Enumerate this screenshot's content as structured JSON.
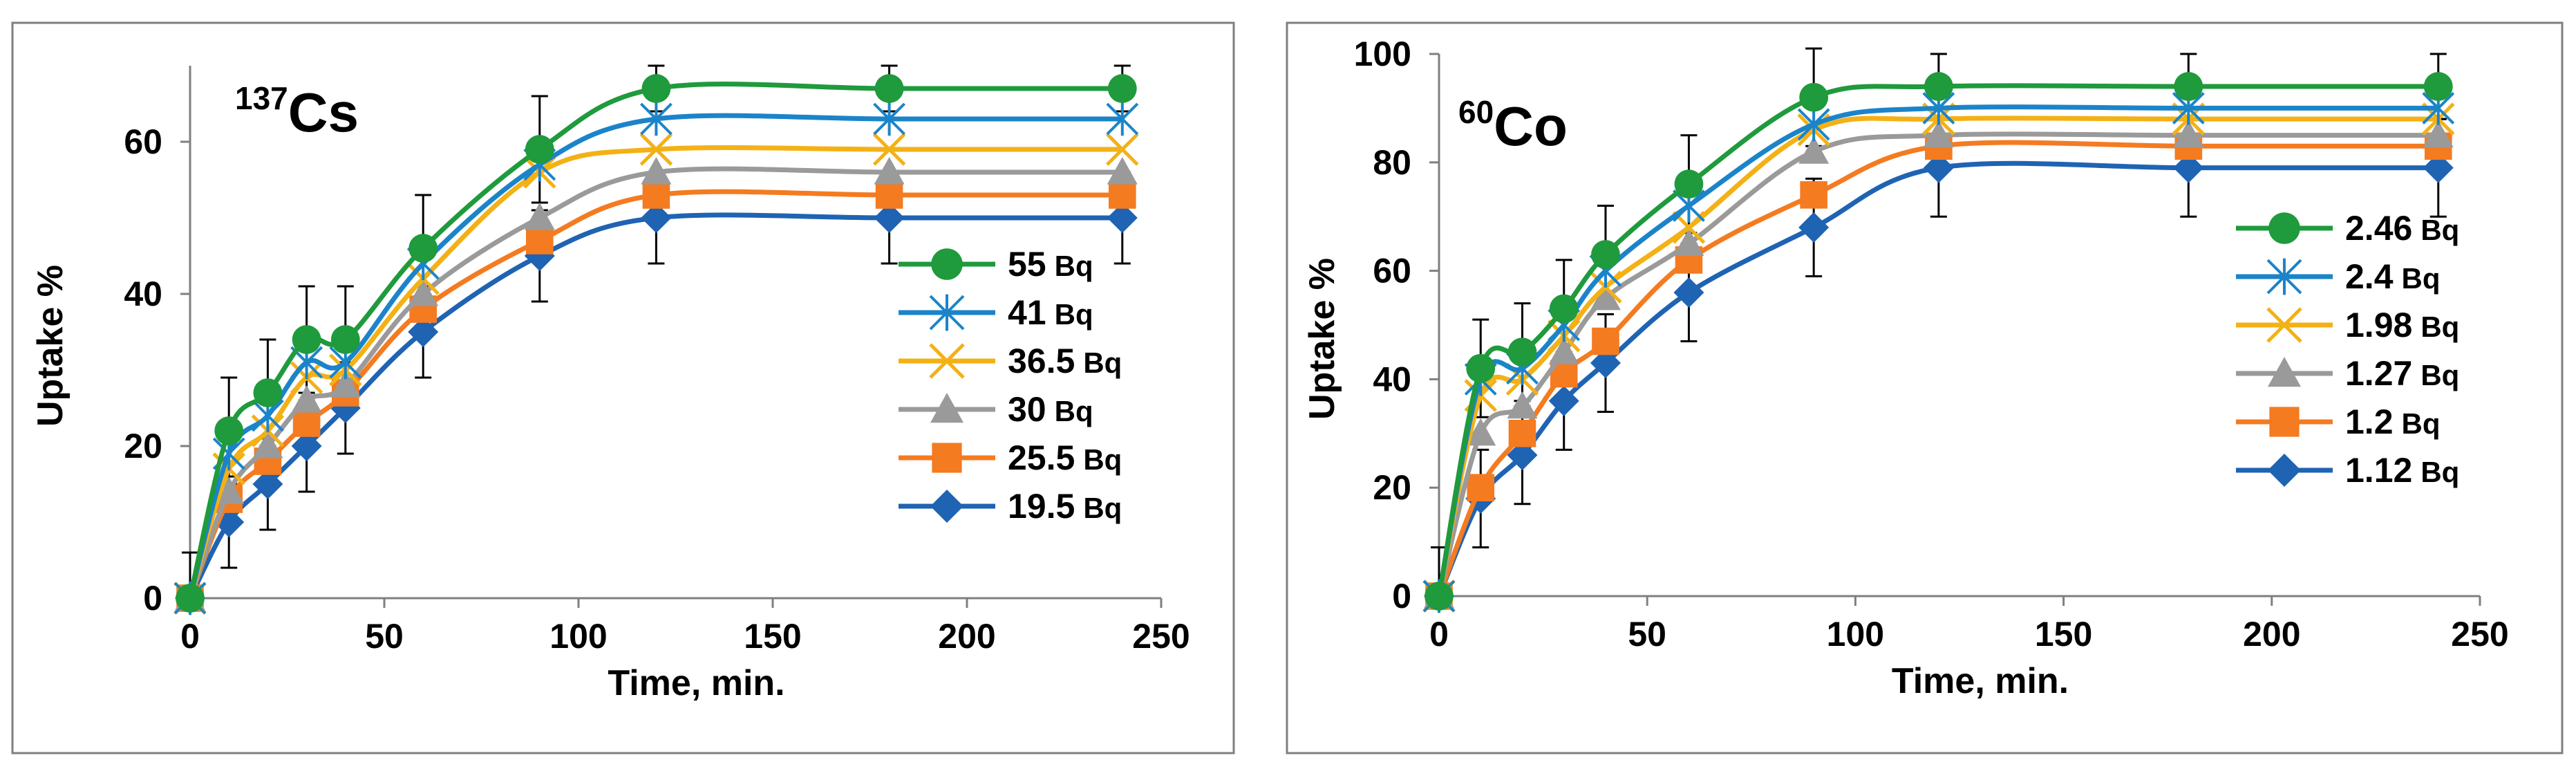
{
  "chart_data": [
    {
      "type": "line",
      "title": "",
      "isotope": {
        "mass": "137",
        "symbol": "Cs"
      },
      "xlabel": "Time, min.",
      "ylabel": "Uptake %",
      "xlim": [
        0,
        250
      ],
      "ylim": [
        0,
        70
      ],
      "xticks": [
        0,
        50,
        100,
        150,
        200,
        250
      ],
      "yticks": [
        0,
        20,
        40,
        60
      ],
      "x": [
        0,
        10,
        20,
        30,
        40,
        60,
        90,
        120,
        180,
        240
      ],
      "legend_position": "center-right",
      "series": [
        {
          "name": "55",
          "unit": "Bq",
          "marker": "circle",
          "color": "#1f9a3c",
          "values": [
            0,
            22,
            27,
            34,
            34,
            46,
            59,
            67,
            67,
            67
          ],
          "errors": [
            6,
            7,
            7,
            7,
            7,
            7,
            7,
            3,
            3,
            3
          ]
        },
        {
          "name": "41",
          "unit": "Bq",
          "marker": "asterisk",
          "color": "#1b84c9",
          "values": [
            0,
            19,
            24,
            31,
            31,
            44,
            57,
            63,
            63,
            63
          ]
        },
        {
          "name": "36.5",
          "unit": "Bq",
          "marker": "cross",
          "color": "#f3b116",
          "values": [
            0,
            17,
            22,
            29,
            30,
            42,
            56,
            59,
            59,
            59
          ]
        },
        {
          "name": "30",
          "unit": "Bq",
          "marker": "triangle",
          "color": "#9a9a9a",
          "values": [
            0,
            14,
            20,
            26,
            28,
            40,
            50,
            56,
            56,
            56
          ]
        },
        {
          "name": "25.5",
          "unit": "Bq",
          "marker": "square",
          "color": "#f47b20",
          "values": [
            0,
            13,
            18,
            23,
            27,
            38,
            47,
            53,
            53,
            53
          ]
        },
        {
          "name": "19.5",
          "unit": "Bq",
          "marker": "diamond",
          "color": "#1f63b3",
          "values": [
            0,
            10,
            15,
            20,
            25,
            35,
            45,
            50,
            50,
            50
          ],
          "errors": [
            6,
            6,
            6,
            6,
            6,
            6,
            6,
            6,
            6,
            6
          ]
        }
      ]
    },
    {
      "type": "line",
      "title": "",
      "isotope": {
        "mass": "60",
        "symbol": "Co"
      },
      "xlabel": "Time, min.",
      "ylabel": "Uptake %",
      "xlim": [
        0,
        250
      ],
      "ylim": [
        0,
        100
      ],
      "xticks": [
        0,
        50,
        100,
        150,
        200,
        250
      ],
      "yticks": [
        0,
        20,
        40,
        60,
        80,
        100
      ],
      "x": [
        0,
        10,
        20,
        30,
        40,
        60,
        90,
        120,
        180,
        240
      ],
      "legend_position": "center-right",
      "series": [
        {
          "name": "2.46",
          "unit": "Bq",
          "marker": "circle",
          "color": "#1f9a3c",
          "values": [
            0,
            42,
            45,
            53,
            63,
            76,
            92,
            94,
            94,
            94
          ],
          "errors": [
            9,
            9,
            9,
            9,
            9,
            9,
            9,
            6,
            6,
            6
          ]
        },
        {
          "name": "2.4",
          "unit": "Bq",
          "marker": "asterisk",
          "color": "#1b84c9",
          "values": [
            0,
            40,
            42,
            50,
            60,
            72,
            87,
            90,
            90,
            90
          ]
        },
        {
          "name": "1.98",
          "unit": "Bq",
          "marker": "cross",
          "color": "#f3b116",
          "values": [
            0,
            37,
            40,
            48,
            57,
            68,
            86,
            88,
            88,
            88
          ]
        },
        {
          "name": "1.27",
          "unit": "Bq",
          "marker": "triangle",
          "color": "#9a9a9a",
          "values": [
            0,
            30,
            35,
            45,
            55,
            65,
            82,
            85,
            85,
            85
          ]
        },
        {
          "name": "1.2",
          "unit": "Bq",
          "marker": "square",
          "color": "#f47b20",
          "values": [
            0,
            20,
            30,
            41,
            47,
            62,
            74,
            83,
            83,
            83
          ]
        },
        {
          "name": "1.12",
          "unit": "Bq",
          "marker": "diamond",
          "color": "#1f63b3",
          "values": [
            0,
            18,
            26,
            36,
            43,
            56,
            68,
            79,
            79,
            79
          ],
          "errors": [
            9,
            9,
            9,
            9,
            9,
            9,
            9,
            9,
            9,
            9
          ]
        }
      ]
    }
  ]
}
